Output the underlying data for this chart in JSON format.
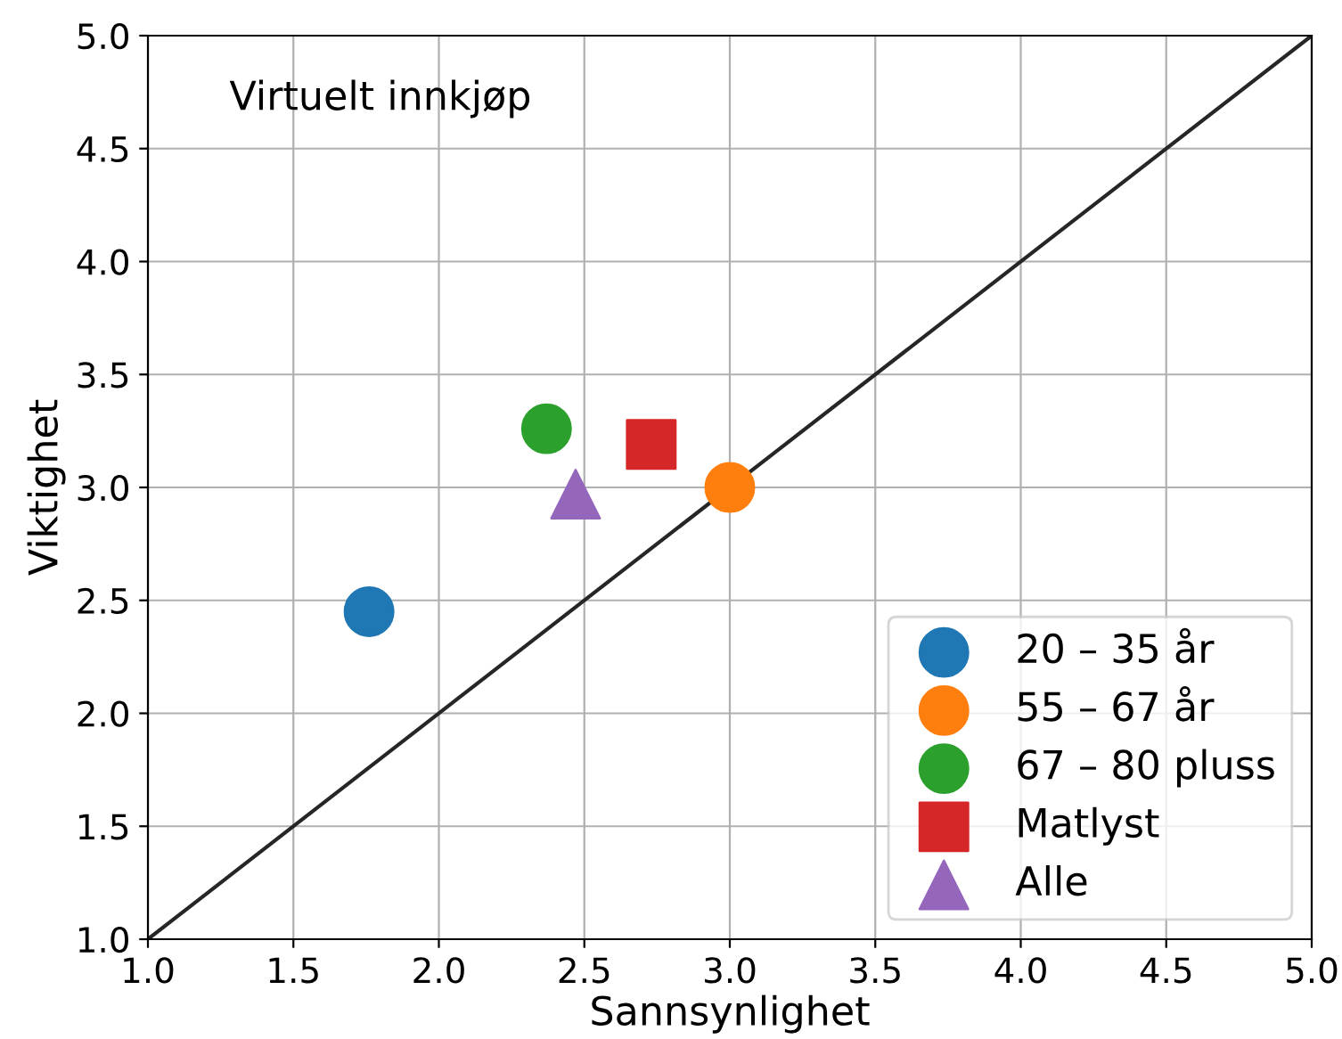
{
  "chart_data": {
    "type": "scatter",
    "xlabel": "Sannsynlighet",
    "ylabel": "Viktighet",
    "annotations": [
      "Virtuelt innkjøp"
    ],
    "xlim": [
      1.0,
      5.0
    ],
    "ylim": [
      1.0,
      5.0
    ],
    "xticks": [
      {
        "value": 1.0,
        "label": "1.0"
      },
      {
        "value": 1.5,
        "label": "1.5"
      },
      {
        "value": 2.0,
        "label": "2.0"
      },
      {
        "value": 2.5,
        "label": "2.5"
      },
      {
        "value": 3.0,
        "label": "3.0"
      },
      {
        "value": 3.5,
        "label": "3.5"
      },
      {
        "value": 4.0,
        "label": "4.0"
      },
      {
        "value": 4.5,
        "label": "4.5"
      },
      {
        "value": 5.0,
        "label": "5.0"
      }
    ],
    "yticks": [
      {
        "value": 1.0,
        "label": "1.0"
      },
      {
        "value": 1.5,
        "label": "1.5"
      },
      {
        "value": 2.0,
        "label": "2.0"
      },
      {
        "value": 2.5,
        "label": "2.5"
      },
      {
        "value": 3.0,
        "label": "3.0"
      },
      {
        "value": 3.5,
        "label": "3.5"
      },
      {
        "value": 4.0,
        "label": "4.0"
      },
      {
        "value": 4.5,
        "label": "4.5"
      },
      {
        "value": 5.0,
        "label": "5.0"
      }
    ],
    "grid": true,
    "legend": "bottom right",
    "series": [
      {
        "type": "line",
        "color": "#262626",
        "x": [
          1.0,
          5.0
        ],
        "values": [
          1.0,
          5.0
        ],
        "marker": "none"
      },
      {
        "name": "20 – 35 år",
        "color": "#1f77b4",
        "x": [
          1.76
        ],
        "values": [
          2.45
        ],
        "marker": "circle"
      },
      {
        "name": "55 – 67 år",
        "color": "#ff7f0e",
        "x": [
          3.0
        ],
        "values": [
          3.0
        ],
        "marker": "circle"
      },
      {
        "name": "67 – 80 pluss",
        "color": "#2ca02c",
        "x": [
          2.37
        ],
        "values": [
          3.26
        ],
        "marker": "circle"
      },
      {
        "name": "Matlyst",
        "color": "#d62728",
        "x": [
          2.73
        ],
        "values": [
          3.19
        ],
        "marker": "square"
      },
      {
        "name": "Alle",
        "color": "#9467bd",
        "x": [
          2.47
        ],
        "values": [
          2.97
        ],
        "marker": "triangle"
      }
    ]
  }
}
